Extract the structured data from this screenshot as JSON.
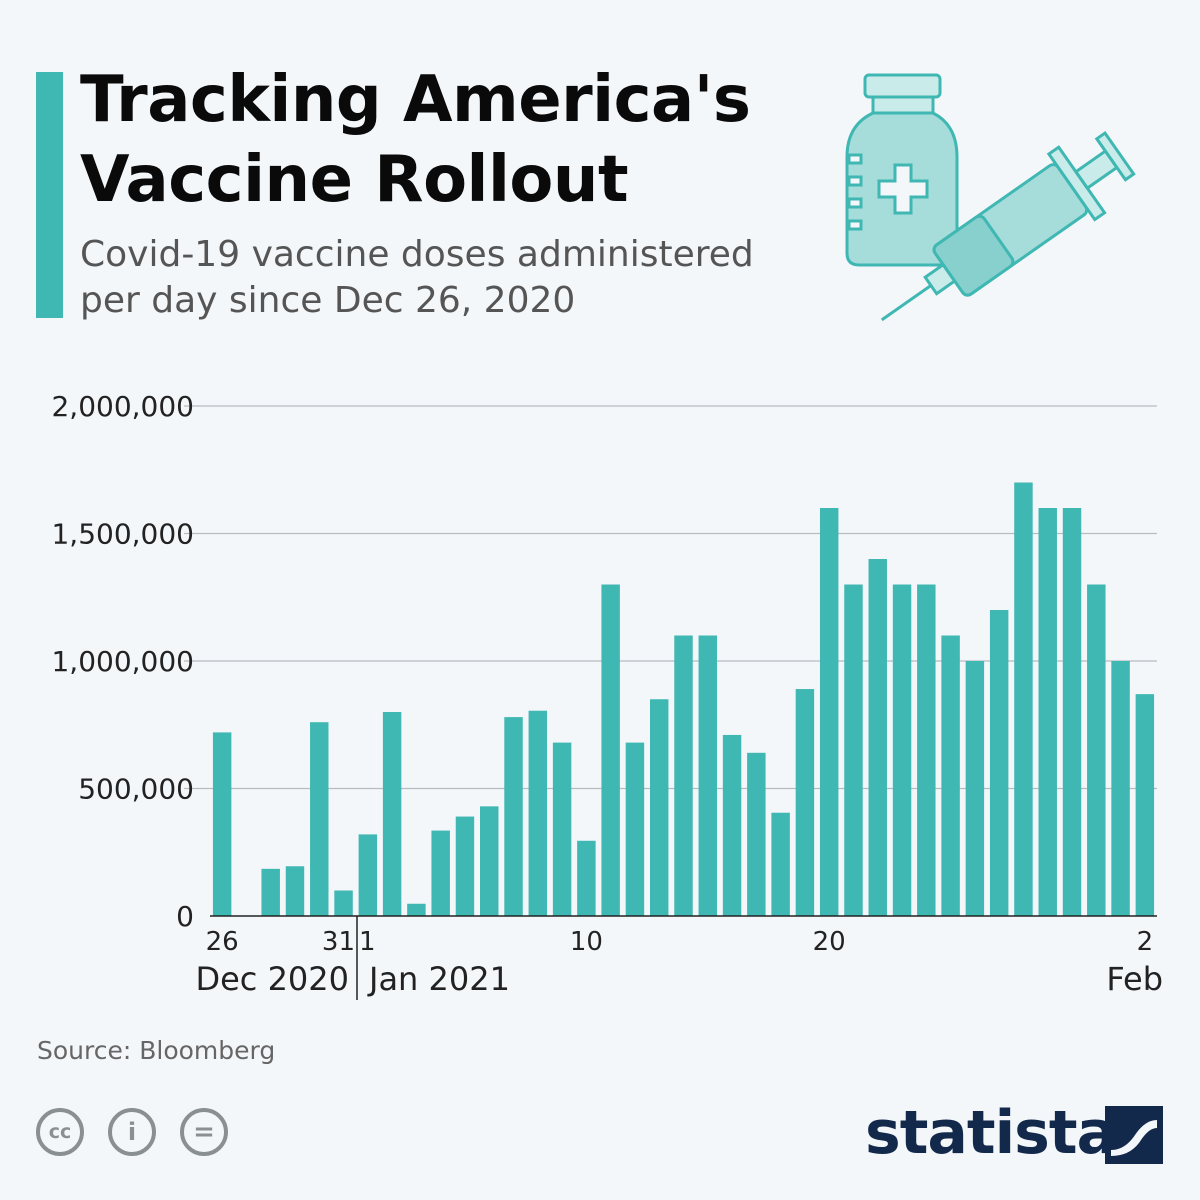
{
  "header": {
    "title": "Tracking America's Vaccine Rollout",
    "subtitle": "Covid-19 vaccine doses administered per day since Dec 26, 2020"
  },
  "colors": {
    "accent": "#3fb7b2",
    "bar": "#3fb7b2",
    "brand": "#13294b",
    "grid": "#b8bcc0"
  },
  "illustration": {
    "icons": [
      "vaccine-vial-icon",
      "syringe-icon"
    ]
  },
  "chart_data": {
    "type": "bar",
    "title": "Tracking America's Vaccine Rollout",
    "subtitle": "Covid-19 vaccine doses administered per day since Dec 26, 2020",
    "xlabel": "",
    "ylabel": "",
    "ylim": [
      0,
      2000000
    ],
    "yticks": [
      "2,000,000",
      "1,500,000",
      "1,000,000",
      "500,000",
      "0"
    ],
    "ytick_values": [
      2000000,
      1500000,
      1000000,
      500000,
      0
    ],
    "grid": true,
    "legend": "none",
    "categories": [
      "Dec 26",
      "Dec 27",
      "Dec 28",
      "Dec 29",
      "Dec 30",
      "Dec 31",
      "Jan 1",
      "Jan 2",
      "Jan 3",
      "Jan 4",
      "Jan 5",
      "Jan 6",
      "Jan 7",
      "Jan 8",
      "Jan 9",
      "Jan 10",
      "Jan 11",
      "Jan 12",
      "Jan 13",
      "Jan 14",
      "Jan 15",
      "Jan 16",
      "Jan 17",
      "Jan 18",
      "Jan 19",
      "Jan 20",
      "Jan 21",
      "Jan 22",
      "Jan 23",
      "Jan 24",
      "Jan 25",
      "Jan 26",
      "Jan 27",
      "Jan 28",
      "Jan 29",
      "Jan 30",
      "Jan 31",
      "Feb 1",
      "Feb 2"
    ],
    "values": [
      720000,
      null,
      185000,
      195000,
      760000,
      100000,
      320000,
      800000,
      48000,
      335000,
      390000,
      430000,
      780000,
      805000,
      680000,
      295000,
      1300000,
      680000,
      850000,
      1100000,
      1100000,
      710000,
      640000,
      405000,
      890000,
      1600000,
      1300000,
      1400000,
      1300000,
      1300000,
      1100000,
      1000000,
      1200000,
      1700000,
      1600000,
      1600000,
      1300000,
      1000000,
      870000
    ],
    "xtick_labels": [
      {
        "index": 0,
        "label": "26"
      },
      {
        "index": 5,
        "label": "31"
      },
      {
        "index": 6,
        "label": "1"
      },
      {
        "index": 15,
        "label": "10"
      },
      {
        "index": 25,
        "label": "20"
      },
      {
        "index": 38,
        "label": "2"
      }
    ],
    "period_labels": [
      {
        "index": 0,
        "label": "Dec 2020"
      },
      {
        "index": 6,
        "label": "Jan 2021"
      },
      {
        "index": 38,
        "label": "Feb"
      }
    ]
  },
  "footer": {
    "source": "Source: Bloomberg",
    "brand": "statista",
    "license_icons": [
      {
        "name": "cc-license-icon",
        "glyph": "cc"
      },
      {
        "name": "attribution-icon",
        "glyph": "i"
      },
      {
        "name": "no-derivatives-icon",
        "glyph": "="
      }
    ]
  }
}
